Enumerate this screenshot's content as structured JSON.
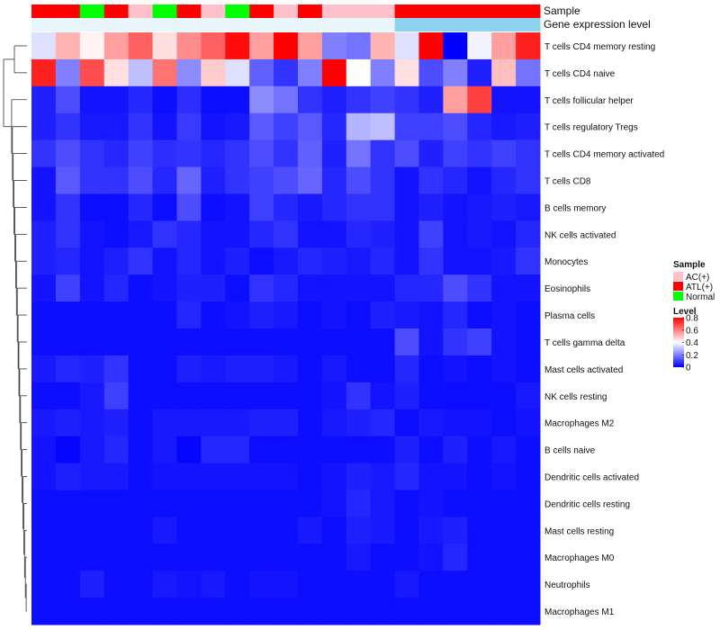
{
  "chart_data": {
    "type": "heatmap",
    "title": "",
    "annotation_tracks": [
      {
        "name": "Sample",
        "values": [
          "ATL(+)",
          "ATL(+)",
          "Normal",
          "ATL(+)",
          "AC(+)",
          "Normal",
          "ATL(+)",
          "AC(+)",
          "Normal",
          "ATL(+)",
          "AC(+)",
          "ATL(+)",
          "AC(+)",
          "AC(+)",
          "AC(+)",
          "ATL(+)",
          "ATL(+)",
          "ATL(+)",
          "ATL(+)",
          "ATL(+)",
          "ATL(+)"
        ]
      },
      {
        "name": "Gene expression level",
        "values": [
          "low",
          "low",
          "low",
          "low",
          "low",
          "low",
          "low",
          "low",
          "low",
          "low",
          "low",
          "low",
          "low",
          "low",
          "low",
          "high",
          "high",
          "high",
          "high",
          "high",
          "high"
        ]
      }
    ],
    "rows": [
      "T cells CD4 memory resting",
      "T cells CD4 naive",
      "T cells follicular helper",
      "T cells regulatory  Tregs",
      "T cells CD4 memory activated",
      "T cells CD8",
      "B cells memory",
      "NK cells activated",
      "Monocytes",
      "Eosinophils",
      "Plasma cells",
      "T cells gamma delta",
      "Mast cells activated",
      "NK cells resting",
      "Macrophages M2",
      "B cells naive",
      "Dendritic cells activated",
      "Dendritic cells resting",
      "Mast cells resting",
      "Macrophages M0",
      "Neutrophils",
      "Macrophages M1"
    ],
    "values": [
      [
        0.35,
        0.52,
        0.42,
        0.55,
        0.65,
        0.45,
        0.58,
        0.65,
        0.78,
        0.55,
        0.8,
        0.55,
        0.2,
        0.18,
        0.52,
        0.35,
        0.8,
        0.0,
        0.38,
        0.55,
        0.75
      ],
      [
        0.75,
        0.2,
        0.68,
        0.45,
        0.3,
        0.62,
        0.22,
        0.48,
        0.35,
        0.15,
        0.08,
        0.2,
        0.8,
        0.4,
        0.2,
        0.45,
        0.12,
        0.2,
        0.05,
        0.5,
        0.18
      ],
      [
        0.05,
        0.12,
        0.03,
        0.03,
        0.06,
        0.02,
        0.07,
        0.02,
        0.02,
        0.22,
        0.18,
        0.08,
        0.05,
        0.08,
        0.1,
        0.08,
        0.05,
        0.55,
        0.7,
        0.03,
        0.03
      ],
      [
        0.05,
        0.08,
        0.04,
        0.04,
        0.08,
        0.03,
        0.09,
        0.03,
        0.04,
        0.14,
        0.1,
        0.14,
        0.06,
        0.28,
        0.3,
        0.1,
        0.1,
        0.12,
        0.06,
        0.04,
        0.05
      ],
      [
        0.08,
        0.12,
        0.08,
        0.06,
        0.1,
        0.07,
        0.08,
        0.06,
        0.08,
        0.12,
        0.08,
        0.15,
        0.05,
        0.18,
        0.08,
        0.12,
        0.05,
        0.1,
        0.08,
        0.1,
        0.08
      ],
      [
        0.03,
        0.14,
        0.08,
        0.08,
        0.12,
        0.06,
        0.16,
        0.05,
        0.08,
        0.1,
        0.12,
        0.16,
        0.06,
        0.12,
        0.08,
        0.03,
        0.08,
        0.06,
        0.03,
        0.06,
        0.08
      ],
      [
        0.03,
        0.08,
        0.02,
        0.02,
        0.06,
        0.02,
        0.12,
        0.02,
        0.03,
        0.1,
        0.06,
        0.04,
        0.06,
        0.08,
        0.08,
        0.03,
        0.05,
        0.03,
        0.04,
        0.05,
        0.04
      ],
      [
        0.05,
        0.08,
        0.03,
        0.02,
        0.04,
        0.08,
        0.06,
        0.03,
        0.03,
        0.06,
        0.08,
        0.03,
        0.03,
        0.06,
        0.05,
        0.03,
        0.1,
        0.03,
        0.04,
        0.03,
        0.06
      ],
      [
        0.05,
        0.06,
        0.03,
        0.05,
        0.08,
        0.03,
        0.06,
        0.03,
        0.05,
        0.02,
        0.04,
        0.06,
        0.05,
        0.04,
        0.06,
        0.03,
        0.08,
        0.03,
        0.03,
        0.04,
        0.08
      ],
      [
        0.03,
        0.1,
        0.03,
        0.06,
        0.02,
        0.03,
        0.05,
        0.05,
        0.02,
        0.08,
        0.06,
        0.03,
        0.03,
        0.03,
        0.03,
        0.06,
        0.06,
        0.12,
        0.08,
        0.03,
        0.03
      ],
      [
        0.02,
        0.02,
        0.02,
        0.02,
        0.02,
        0.02,
        0.06,
        0.02,
        0.03,
        0.05,
        0.04,
        0.02,
        0.03,
        0.02,
        0.05,
        0.04,
        0.03,
        0.06,
        0.02,
        0.03,
        0.02
      ],
      [
        0.02,
        0.02,
        0.02,
        0.02,
        0.02,
        0.02,
        0.02,
        0.02,
        0.02,
        0.02,
        0.02,
        0.02,
        0.02,
        0.02,
        0.02,
        0.12,
        0.03,
        0.08,
        0.1,
        0.03,
        0.02
      ],
      [
        0.04,
        0.06,
        0.05,
        0.08,
        0.02,
        0.02,
        0.05,
        0.04,
        0.05,
        0.05,
        0.04,
        0.02,
        0.04,
        0.02,
        0.02,
        0.06,
        0.02,
        0.03,
        0.02,
        0.03,
        0.02
      ],
      [
        0.02,
        0.02,
        0.04,
        0.1,
        0.02,
        0.02,
        0.02,
        0.02,
        0.02,
        0.02,
        0.02,
        0.02,
        0.03,
        0.08,
        0.03,
        0.05,
        0.02,
        0.02,
        0.02,
        0.02,
        0.04
      ],
      [
        0.04,
        0.05,
        0.04,
        0.05,
        0.02,
        0.04,
        0.04,
        0.04,
        0.04,
        0.05,
        0.05,
        0.02,
        0.04,
        0.05,
        0.06,
        0.02,
        0.04,
        0.03,
        0.03,
        0.02,
        0.03
      ],
      [
        0.03,
        0.01,
        0.04,
        0.06,
        0.02,
        0.04,
        0.01,
        0.06,
        0.06,
        0.02,
        0.02,
        0.02,
        0.02,
        0.02,
        0.02,
        0.05,
        0.02,
        0.05,
        0.02,
        0.04,
        0.02
      ],
      [
        0.03,
        0.05,
        0.04,
        0.04,
        0.02,
        0.03,
        0.03,
        0.03,
        0.03,
        0.03,
        0.03,
        0.02,
        0.03,
        0.05,
        0.04,
        0.06,
        0.03,
        0.03,
        0.02,
        0.03,
        0.02
      ],
      [
        0.02,
        0.02,
        0.02,
        0.02,
        0.02,
        0.02,
        0.02,
        0.02,
        0.02,
        0.02,
        0.02,
        0.02,
        0.03,
        0.06,
        0.04,
        0.02,
        0.03,
        0.02,
        0.02,
        0.02,
        0.02
      ],
      [
        0.02,
        0.02,
        0.02,
        0.02,
        0.02,
        0.04,
        0.02,
        0.02,
        0.02,
        0.02,
        0.02,
        0.04,
        0.02,
        0.05,
        0.04,
        0.02,
        0.04,
        0.05,
        0.02,
        0.02,
        0.02
      ],
      [
        0.02,
        0.02,
        0.02,
        0.02,
        0.02,
        0.02,
        0.02,
        0.02,
        0.02,
        0.02,
        0.02,
        0.02,
        0.02,
        0.04,
        0.02,
        0.02,
        0.03,
        0.06,
        0.02,
        0.02,
        0.02
      ],
      [
        0.02,
        0.02,
        0.05,
        0.02,
        0.02,
        0.04,
        0.03,
        0.04,
        0.02,
        0.03,
        0.03,
        0.02,
        0.02,
        0.02,
        0.02,
        0.04,
        0.02,
        0.02,
        0.02,
        0.02,
        0.02
      ],
      [
        0.02,
        0.02,
        0.02,
        0.02,
        0.02,
        0.02,
        0.02,
        0.02,
        0.02,
        0.02,
        0.02,
        0.02,
        0.02,
        0.02,
        0.02,
        0.02,
        0.02,
        0.02,
        0.02,
        0.02,
        0.02
      ]
    ],
    "legend": {
      "sample_title": "Sample",
      "sample_items": [
        {
          "label": "AC(+)",
          "color": "#ffc0cb"
        },
        {
          "label": "ATL(+)",
          "color": "#ff0000"
        },
        {
          "label": "Normal",
          "color": "#00ff00"
        }
      ],
      "level_title": "Level",
      "level_ticks": [
        "0.8",
        "0.6",
        "0.4",
        "0.2",
        "0"
      ],
      "level_range": [
        0,
        0.8
      ]
    },
    "expression_colors": {
      "low": "#e8f6fb",
      "high": "#8dd3ef"
    },
    "color_scale": {
      "low": "#0000ff",
      "mid": "#ffffff",
      "high": "#ff0000",
      "domain": [
        0,
        0.4,
        0.8
      ]
    }
  }
}
